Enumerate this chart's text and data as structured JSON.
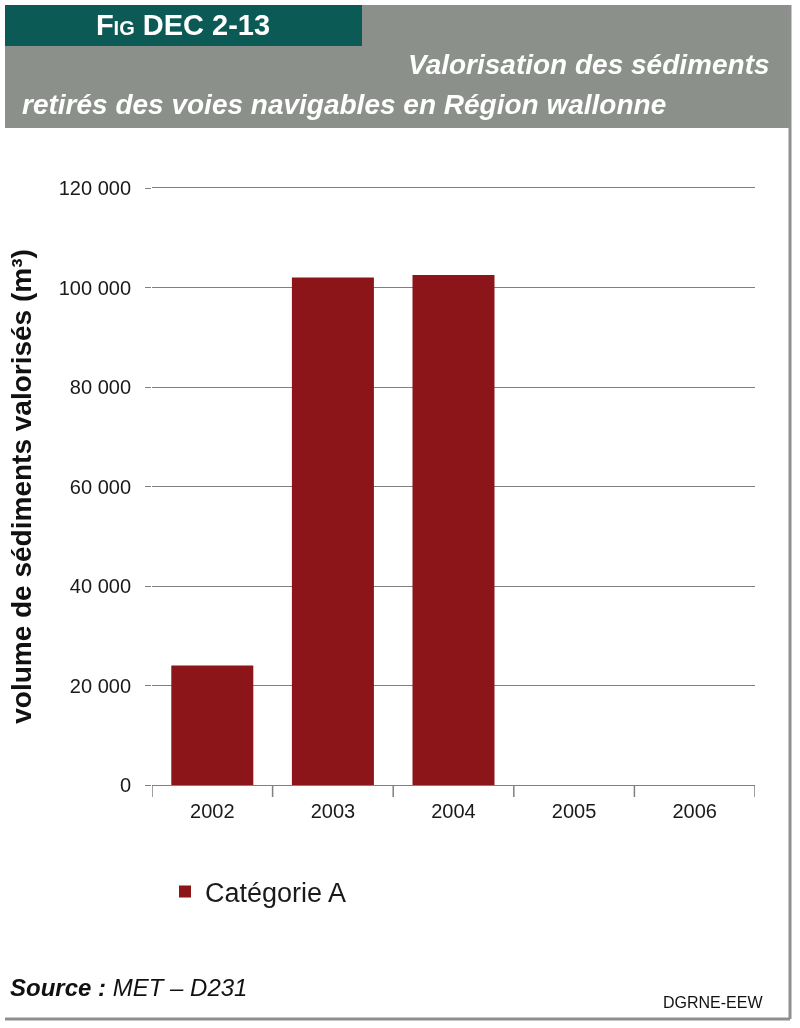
{
  "chart_data": {
    "type": "bar",
    "title": "Fig DEC 2-13",
    "subtitle": "Valorisation des sédiments retirés des voies navigables en Région wallonne",
    "ylabel": "volume de sédiments valorisés (m³)",
    "categories": [
      "2002",
      "2003",
      "2004",
      "2005",
      "2006"
    ],
    "series": [
      {
        "name": "Catégorie A",
        "color": "#8c1519",
        "values": [
          24000,
          102000,
          102500,
          null,
          null
        ]
      }
    ],
    "ylim": [
      0,
      120000
    ],
    "yticks": [
      0,
      {
        "value": 20000,
        "label": "20 000"
      },
      {
        "value": 40000,
        "label": "40 000"
      },
      {
        "value": 60000,
        "label": "60 000"
      },
      {
        "value": 80000,
        "label": "80 000"
      },
      {
        "value": 100000,
        "label": "100 000"
      },
      {
        "value": 120000,
        "label": "120 000"
      }
    ],
    "grid": "y",
    "legend": "bottom",
    "annotations": [
      "Source : MET – D231",
      "DGRNE-EEW"
    ]
  }
}
